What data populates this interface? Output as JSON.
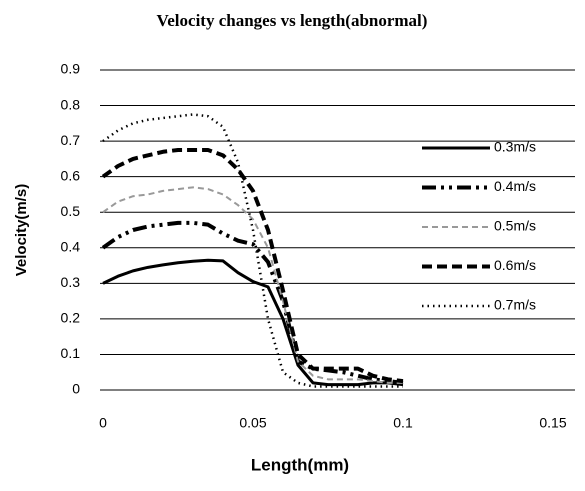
{
  "chart_data": {
    "type": "line",
    "title": "Velocity changes vs length(abnormal)",
    "x_label": "Length(mm)",
    "y_label": "Velocity(m/s)",
    "x": [
      0,
      0.005,
      0.01,
      0.015,
      0.02,
      0.025,
      0.03,
      0.035,
      0.04,
      0.045,
      0.05,
      0.055,
      0.06,
      0.065,
      0.07,
      0.075,
      0.08,
      0.085,
      0.09,
      0.095,
      0.1
    ],
    "series": [
      {
        "name": "0.3m/s",
        "color": "#000000",
        "style": "solid",
        "values": [
          0.3,
          0.32,
          0.335,
          0.345,
          0.352,
          0.358,
          0.362,
          0.365,
          0.363,
          0.33,
          0.305,
          0.29,
          0.2,
          0.07,
          0.02,
          0.015,
          0.015,
          0.015,
          0.02,
          0.02,
          0.015
        ]
      },
      {
        "name": "0.4m/s",
        "color": "#000000",
        "style": "dash-dot-dot",
        "values": [
          0.4,
          0.43,
          0.45,
          0.46,
          0.465,
          0.47,
          0.47,
          0.465,
          0.44,
          0.42,
          0.41,
          0.36,
          0.25,
          0.08,
          0.06,
          0.055,
          0.05,
          0.04,
          0.03,
          0.025,
          0.02
        ]
      },
      {
        "name": "0.5m/s",
        "color": "#999999",
        "style": "dash",
        "values": [
          0.5,
          0.53,
          0.545,
          0.55,
          0.56,
          0.565,
          0.57,
          0.565,
          0.55,
          0.52,
          0.48,
          0.4,
          0.25,
          0.08,
          0.04,
          0.03,
          0.03,
          0.03,
          0.025,
          0.02,
          0.02
        ]
      },
      {
        "name": "0.6m/s",
        "color": "#000000",
        "style": "long-dash",
        "values": [
          0.6,
          0.63,
          0.65,
          0.66,
          0.67,
          0.675,
          0.675,
          0.675,
          0.66,
          0.62,
          0.56,
          0.45,
          0.28,
          0.1,
          0.06,
          0.06,
          0.06,
          0.06,
          0.04,
          0.03,
          0.025
        ]
      },
      {
        "name": "0.7m/s",
        "color": "#000000",
        "style": "dot",
        "values": [
          0.7,
          0.73,
          0.75,
          0.76,
          0.765,
          0.77,
          0.775,
          0.77,
          0.74,
          0.64,
          0.45,
          0.2,
          0.05,
          0.02,
          0.01,
          0.01,
          0.01,
          0.01,
          0.01,
          0.01,
          0.01
        ]
      }
    ],
    "xlim": [
      0,
      0.15
    ],
    "xticks": [
      0,
      0.05,
      0.1,
      0.15
    ],
    "ylim": [
      0,
      0.9
    ],
    "yticks": [
      0,
      0.1,
      0.2,
      0.3,
      0.4,
      0.5,
      0.6,
      0.7,
      0.8,
      0.9
    ],
    "grid": true,
    "legend": "right"
  }
}
